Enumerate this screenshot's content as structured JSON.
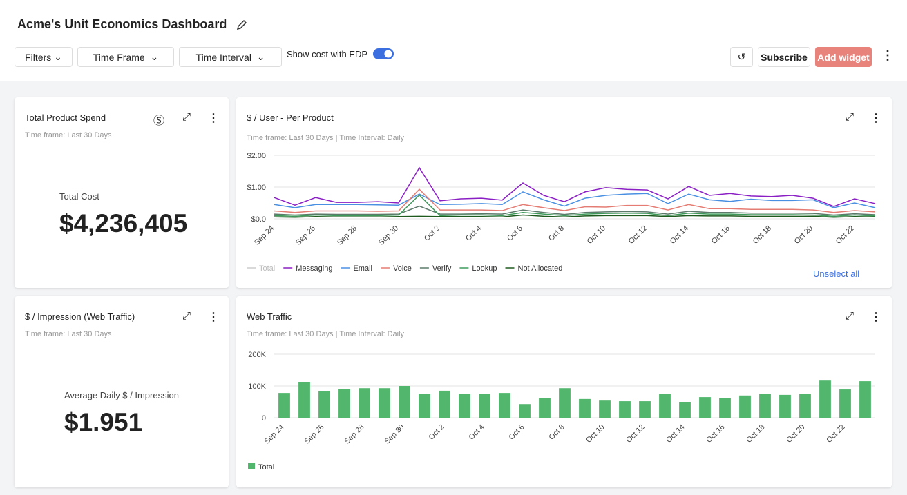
{
  "header": {
    "title": "Acme's Unit Economics Dashboard"
  },
  "toolbar": {
    "filters": "Filters",
    "time_frame": "Time Frame",
    "time_interval": "Time Interval",
    "edp_toggle": "Show cost with EDP",
    "subscribe": "Subscribe",
    "add_widget": "Add widget"
  },
  "widgets": [
    {
      "title": "Total Product Spend",
      "time_frame": "Time frame: Last 30 Days",
      "kpi_label": "Total Cost",
      "kpi_value": "$4,236,405"
    },
    {
      "title": "$ / User - Per Product",
      "time_frame": "Time frame: Last 30 Days",
      "time_interval": "Time Interval: Daily",
      "unselect": "Unselect all",
      "chart_data": {
        "type": "line",
        "categories": [
          "Sep 24",
          null,
          "Sep 26",
          null,
          "Sep 28",
          null,
          "Sep 30",
          null,
          "Oct 2",
          null,
          "Oct 4",
          null,
          "Oct 6",
          null,
          "Oct 8",
          null,
          "Oct 10",
          null,
          "Oct 12",
          null,
          "Oct 14",
          null,
          "Oct 16",
          null,
          "Oct 18",
          null,
          "Oct 20",
          null,
          "Oct 22",
          null
        ],
        "ylim": [
          0,
          2
        ],
        "yticks": [
          {
            "value": 0,
            "label": "$0.0"
          },
          {
            "value": 1,
            "label": "$1.00"
          },
          {
            "value": 2,
            "label": "$2.00"
          }
        ],
        "grid": true,
        "series": [
          {
            "name": "Total",
            "color": "#cccccc",
            "visible": false
          },
          {
            "name": "Messaging",
            "color": "#8a1fc4",
            "visible": true,
            "values": [
              0.67,
              0.43,
              0.67,
              0.52,
              0.52,
              0.54,
              0.5,
              1.61,
              0.57,
              0.63,
              0.65,
              0.59,
              1.13,
              0.74,
              0.54,
              0.85,
              0.98,
              0.93,
              0.91,
              0.63,
              1.02,
              0.74,
              0.8,
              0.72,
              0.7,
              0.74,
              0.65,
              0.39,
              0.63,
              0.48
            ]
          },
          {
            "name": "Email",
            "color": "#4a90e2",
            "visible": true,
            "values": [
              0.45,
              0.35,
              0.45,
              0.45,
              0.45,
              0.44,
              0.43,
              0.78,
              0.45,
              0.46,
              0.48,
              0.45,
              0.85,
              0.6,
              0.4,
              0.65,
              0.74,
              0.78,
              0.8,
              0.48,
              0.78,
              0.6,
              0.55,
              0.62,
              0.58,
              0.58,
              0.6,
              0.35,
              0.5,
              0.35
            ]
          },
          {
            "name": "Voice",
            "color": "#e57c73",
            "visible": true,
            "values": [
              0.25,
              0.2,
              0.25,
              0.25,
              0.25,
              0.24,
              0.25,
              0.93,
              0.28,
              0.28,
              0.28,
              0.26,
              0.45,
              0.35,
              0.26,
              0.38,
              0.37,
              0.42,
              0.42,
              0.28,
              0.45,
              0.32,
              0.32,
              0.3,
              0.3,
              0.3,
              0.28,
              0.2,
              0.26,
              0.22
            ]
          },
          {
            "name": "Verify",
            "color": "#5c7a6a",
            "visible": true,
            "values": [
              0.15,
              0.12,
              0.15,
              0.14,
              0.14,
              0.14,
              0.15,
              0.4,
              0.15,
              0.15,
              0.16,
              0.15,
              0.28,
              0.2,
              0.14,
              0.2,
              0.22,
              0.23,
              0.22,
              0.15,
              0.24,
              0.2,
              0.2,
              0.18,
              0.18,
              0.18,
              0.17,
              0.12,
              0.16,
              0.13
            ]
          },
          {
            "name": "Lookup",
            "color": "#3d9a5a",
            "visible": true,
            "values": [
              0.1,
              0.08,
              0.12,
              0.1,
              0.1,
              0.1,
              0.12,
              0.75,
              0.1,
              0.12,
              0.12,
              0.1,
              0.2,
              0.15,
              0.1,
              0.15,
              0.17,
              0.18,
              0.17,
              0.1,
              0.18,
              0.15,
              0.15,
              0.13,
              0.13,
              0.13,
              0.12,
              0.08,
              0.12,
              0.09
            ]
          },
          {
            "name": "Not Allocated",
            "color": "#1e5a1e",
            "visible": true,
            "values": [
              0.06,
              0.05,
              0.07,
              0.06,
              0.06,
              0.06,
              0.07,
              0.08,
              0.07,
              0.07,
              0.07,
              0.06,
              0.12,
              0.08,
              0.06,
              0.09,
              0.1,
              0.1,
              0.1,
              0.07,
              0.1,
              0.09,
              0.09,
              0.08,
              0.08,
              0.08,
              0.08,
              0.05,
              0.07,
              0.06
            ]
          }
        ]
      }
    },
    {
      "title": "$ / Impression (Web Traffic)",
      "time_frame": "Time frame: Last 30 Days",
      "kpi_label": "Average Daily $ / Impression",
      "kpi_value": "$1.951"
    },
    {
      "title": "Web Traffic",
      "time_frame": "Time frame: Last 30 Days",
      "time_interval": "Time Interval: Daily",
      "chart_data": {
        "type": "bar",
        "categories": [
          "Sep 24",
          null,
          "Sep 26",
          null,
          "Sep 28",
          null,
          "Sep 30",
          null,
          "Oct 2",
          null,
          "Oct 4",
          null,
          "Oct 6",
          null,
          "Oct 8",
          null,
          "Oct 10",
          null,
          "Oct 12",
          null,
          "Oct 14",
          null,
          "Oct 16",
          null,
          "Oct 18",
          null,
          "Oct 20",
          null,
          "Oct 22",
          null
        ],
        "ylim": [
          0,
          200000
        ],
        "yticks": [
          0,
          {
            "value": 100000,
            "label": "100K"
          },
          {
            "value": 200000,
            "label": "200K"
          }
        ],
        "grid": true,
        "series": [
          {
            "name": "Total",
            "color": "#52b76d",
            "visible": true,
            "values": [
              78000,
              111000,
              83000,
              91000,
              93000,
              93000,
              100000,
              74000,
              85000,
              76000,
              76000,
              78000,
              43000,
              63000,
              93000,
              59000,
              54000,
              52000,
              52000,
              76000,
              50000,
              65000,
              63000,
              70000,
              74000,
              72000,
              76000,
              117000,
              89000,
              115000
            ]
          }
        ]
      }
    }
  ]
}
